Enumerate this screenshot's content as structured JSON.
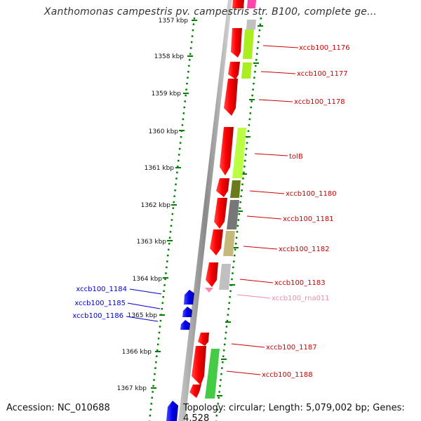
{
  "header": {
    "title": "Xanthomonas campestris pv. campestris str. B100, complete ge..."
  },
  "footer": {
    "accession": "Accession: NC_010688",
    "topology": "Topology: circular; Length: 5,079,002 bp; Genes: 4,528"
  },
  "colors": {
    "forward_gene": "#ff0000",
    "reverse_gene": "#0000ee",
    "rna": "#ff88aa",
    "label_red": "#cc0000",
    "label_blue": "#0000cc",
    "label_pink": "#ee88aa",
    "tick": "#008000"
  },
  "ruler": {
    "ticks": [
      {
        "label": "1357 kbp"
      },
      {
        "label": "1358 kbp"
      },
      {
        "label": "1359 kbp"
      },
      {
        "label": "1360 kbp"
      },
      {
        "label": "1361 kbp"
      },
      {
        "label": "1362 kbp"
      },
      {
        "label": "1363 kbp"
      },
      {
        "label": "1364 kbp"
      },
      {
        "label": "1365 kbp"
      },
      {
        "label": "1366 kbp"
      },
      {
        "label": "1367 kbp"
      }
    ]
  },
  "genes": {
    "labels": [
      {
        "text": "xccb100_1176"
      },
      {
        "text": "xccb100_1177"
      },
      {
        "text": "xccb100_1178"
      },
      {
        "text": "tolB"
      },
      {
        "text": "xccb100_1180"
      },
      {
        "text": "xccb100_1181"
      },
      {
        "text": "xccb100_1182"
      },
      {
        "text": "xccb100_1183"
      },
      {
        "text": "xccb100_rna011"
      },
      {
        "text": "xccb100_1184"
      },
      {
        "text": "xccb100_1185"
      },
      {
        "text": "xccb100_1186"
      },
      {
        "text": "xccb100_1187"
      },
      {
        "text": "xccb100_1188"
      }
    ]
  }
}
